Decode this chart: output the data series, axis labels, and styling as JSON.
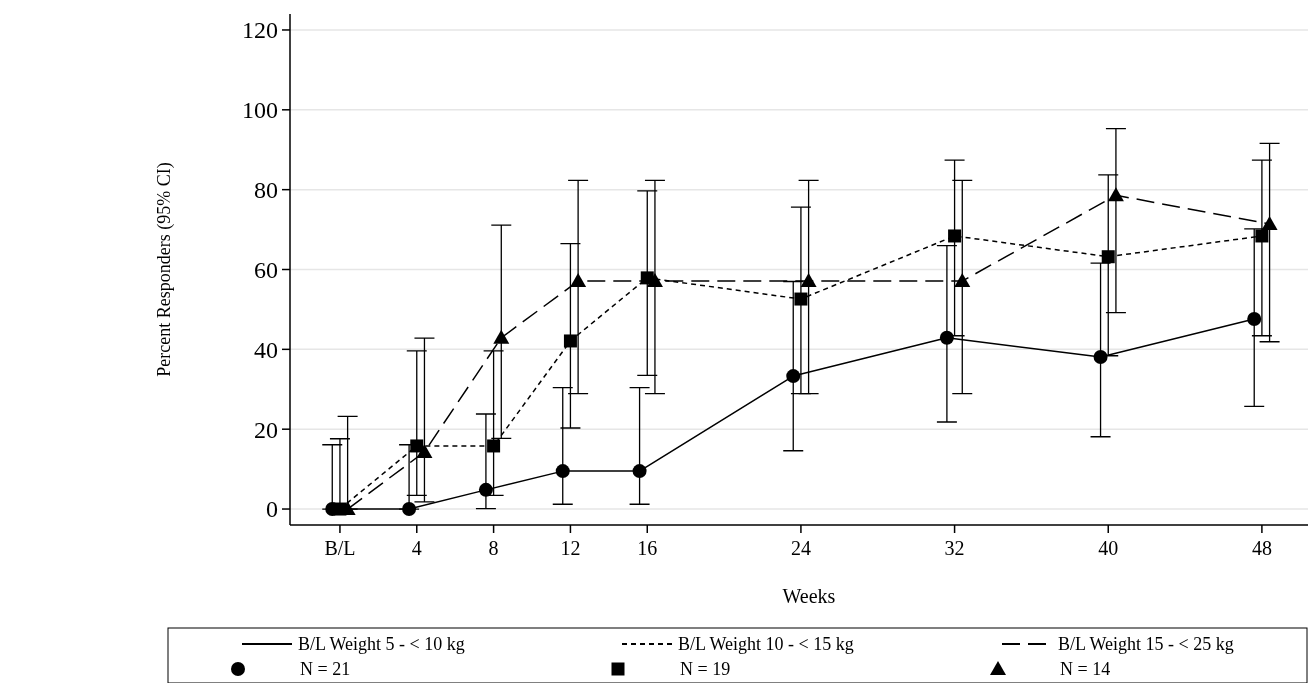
{
  "chart_data": {
    "type": "line",
    "xlabel": "Weeks",
    "ylabel": "Percent Responders (95% CI)",
    "x": [
      0,
      4,
      8,
      12,
      16,
      24,
      32,
      40,
      48
    ],
    "xlim": [
      -2.6,
      50.4
    ],
    "xticks": [
      {
        "value": 0,
        "label": "B/L"
      },
      4,
      8,
      12,
      16,
      24,
      32,
      40,
      48
    ],
    "ylim": [
      -4,
      124
    ],
    "yticks": [
      0,
      20,
      40,
      60,
      80,
      100,
      120
    ],
    "grid": "y",
    "legend": "bottom",
    "series": [
      {
        "name": "B/L Weight 5 - < 10 kg",
        "color": "#000000",
        "marker": "circle",
        "line_style": "solid",
        "x": [
          -0.4,
          3.6,
          7.6,
          11.6,
          15.6,
          23.6,
          31.6,
          39.6,
          47.6
        ],
        "values": [
          0,
          0,
          4.8,
          9.5,
          9.5,
          33.3,
          42.9,
          38.1,
          47.6
        ],
        "errors": [
          [
            0,
            16.1
          ],
          [
            0,
            16.1
          ],
          [
            0.1,
            23.8
          ],
          [
            1.2,
            30.4
          ],
          [
            1.2,
            30.4
          ],
          [
            14.6,
            57
          ],
          [
            21.8,
            66
          ],
          [
            18.1,
            61.6
          ],
          [
            25.7,
            70.2
          ]
        ]
      },
      {
        "name": "B/L Weight 10 - < 15 kg",
        "color": "#000000",
        "marker": "square",
        "line_style": "dotted",
        "values": [
          0,
          15.8,
          15.8,
          42.1,
          57.9,
          52.6,
          68.4,
          63.2,
          68.4
        ],
        "errors": [
          [
            0,
            17.6
          ],
          [
            3.4,
            39.6
          ],
          [
            3.4,
            39.6
          ],
          [
            20.3,
            66.5
          ],
          [
            33.5,
            79.7
          ],
          [
            28.9,
            75.6
          ],
          [
            43.4,
            87.4
          ],
          [
            38.4,
            83.7
          ],
          [
            43.4,
            87.4
          ]
        ]
      },
      {
        "name": "B/L Weight 15 - < 25 kg",
        "color": "#000000",
        "marker": "triangle",
        "line_style": "dashed",
        "x": [
          0.4,
          4.4,
          8.4,
          12.4,
          16.4,
          24.4,
          32.4,
          40.4,
          48.4
        ],
        "values": [
          0,
          14.3,
          42.9,
          57.1,
          57.1,
          57.1,
          57.1,
          78.6,
          71.4
        ],
        "errors": [
          [
            0,
            23.2
          ],
          [
            1.8,
            42.8
          ],
          [
            17.7,
            71.1
          ],
          [
            28.9,
            82.3
          ],
          [
            28.9,
            82.3
          ],
          [
            28.9,
            82.3
          ],
          [
            28.9,
            82.3
          ],
          [
            49.2,
            95.3
          ],
          [
            41.9,
            91.6
          ]
        ]
      }
    ],
    "annotations": [
      "N = 21",
      "N = 19",
      "N = 14"
    ]
  }
}
